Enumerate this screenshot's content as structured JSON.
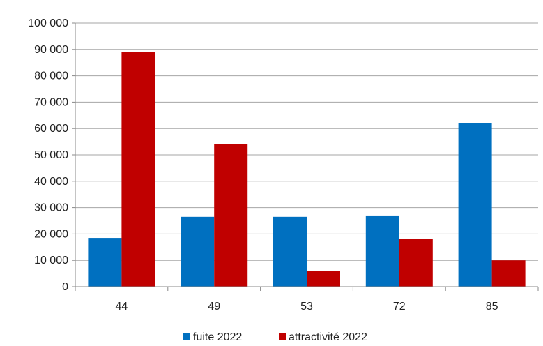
{
  "chart_data": {
    "type": "bar",
    "title": "",
    "xlabel": "",
    "ylabel": "",
    "categories": [
      "44",
      "49",
      "53",
      "72",
      "85"
    ],
    "series": [
      {
        "name": "fuite 2022",
        "color": "#0070C0",
        "values": [
          18500,
          26500,
          26500,
          27000,
          62000
        ]
      },
      {
        "name": "attractivité 2022",
        "color": "#C00000",
        "values": [
          89000,
          54000,
          6000,
          18000,
          10000
        ]
      }
    ],
    "ylim": [
      0,
      100000
    ],
    "yticks": [
      0,
      10000,
      20000,
      30000,
      40000,
      50000,
      60000,
      70000,
      80000,
      90000,
      100000
    ],
    "ytick_labels": [
      "0",
      "10 000",
      "20 000",
      "30 000",
      "40 000",
      "50 000",
      "60 000",
      "70 000",
      "80 000",
      "90 000",
      "100 000"
    ],
    "grid": true,
    "legend_position": "bottom"
  }
}
